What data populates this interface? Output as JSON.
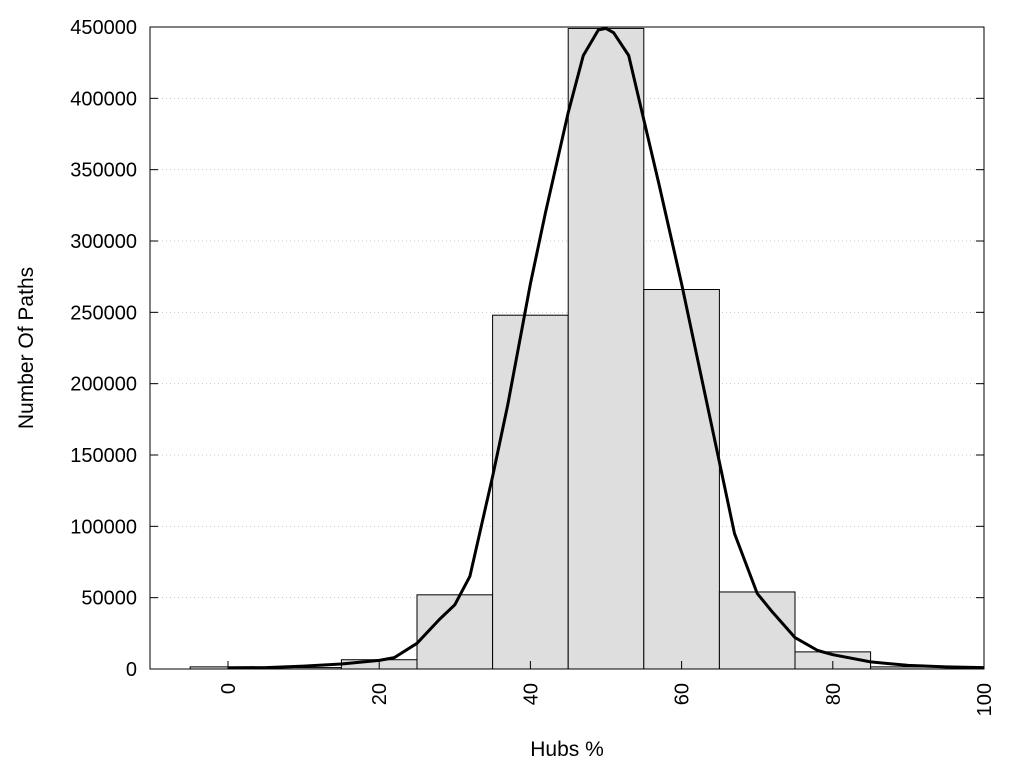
{
  "chart_data": {
    "type": "bar",
    "xlabel": "Hubs %",
    "ylabel": "Number Of Paths",
    "xlim": [
      -10,
      100
    ],
    "ylim": [
      0,
      450000
    ],
    "grid": {
      "y": true,
      "x": false
    },
    "x_ticks": [
      0,
      20,
      40,
      60,
      80,
      100
    ],
    "y_ticks": [
      0,
      50000,
      100000,
      150000,
      200000,
      250000,
      300000,
      350000,
      400000,
      450000
    ],
    "bars": [
      {
        "x_start": -5,
        "x_end": 5,
        "value": 1500
      },
      {
        "x_start": 5,
        "x_end": 15,
        "value": 1000
      },
      {
        "x_start": 15,
        "x_end": 25,
        "value": 6500
      },
      {
        "x_start": 25,
        "x_end": 35,
        "value": 52000
      },
      {
        "x_start": 35,
        "x_end": 45,
        "value": 248000
      },
      {
        "x_start": 45,
        "x_end": 55,
        "value": 449000
      },
      {
        "x_start": 55,
        "x_end": 65,
        "value": 266000
      },
      {
        "x_start": 65,
        "x_end": 75,
        "value": 54000
      },
      {
        "x_start": 75,
        "x_end": 85,
        "value": 12000
      },
      {
        "x_start": 85,
        "x_end": 95,
        "value": 1500
      }
    ],
    "series": [
      {
        "type": "line",
        "points": [
          [
            0,
            800
          ],
          [
            5,
            1000
          ],
          [
            10,
            2000
          ],
          [
            15,
            3500
          ],
          [
            20,
            6000
          ],
          [
            22,
            8000
          ],
          [
            25,
            18000
          ],
          [
            28,
            35000
          ],
          [
            30,
            45000
          ],
          [
            32,
            65000
          ],
          [
            35,
            135000
          ],
          [
            37,
            185000
          ],
          [
            40,
            270000
          ],
          [
            42,
            320000
          ],
          [
            45,
            390000
          ],
          [
            47,
            430000
          ],
          [
            49,
            448000
          ],
          [
            50,
            449000
          ],
          [
            51,
            446000
          ],
          [
            53,
            430000
          ],
          [
            55,
            385000
          ],
          [
            57,
            340000
          ],
          [
            60,
            270000
          ],
          [
            62,
            220000
          ],
          [
            65,
            145000
          ],
          [
            67,
            95000
          ],
          [
            70,
            53000
          ],
          [
            72,
            40000
          ],
          [
            75,
            22000
          ],
          [
            78,
            13000
          ],
          [
            80,
            10000
          ],
          [
            85,
            5000
          ],
          [
            90,
            2500
          ],
          [
            95,
            1500
          ],
          [
            100,
            1000
          ]
        ]
      }
    ]
  }
}
